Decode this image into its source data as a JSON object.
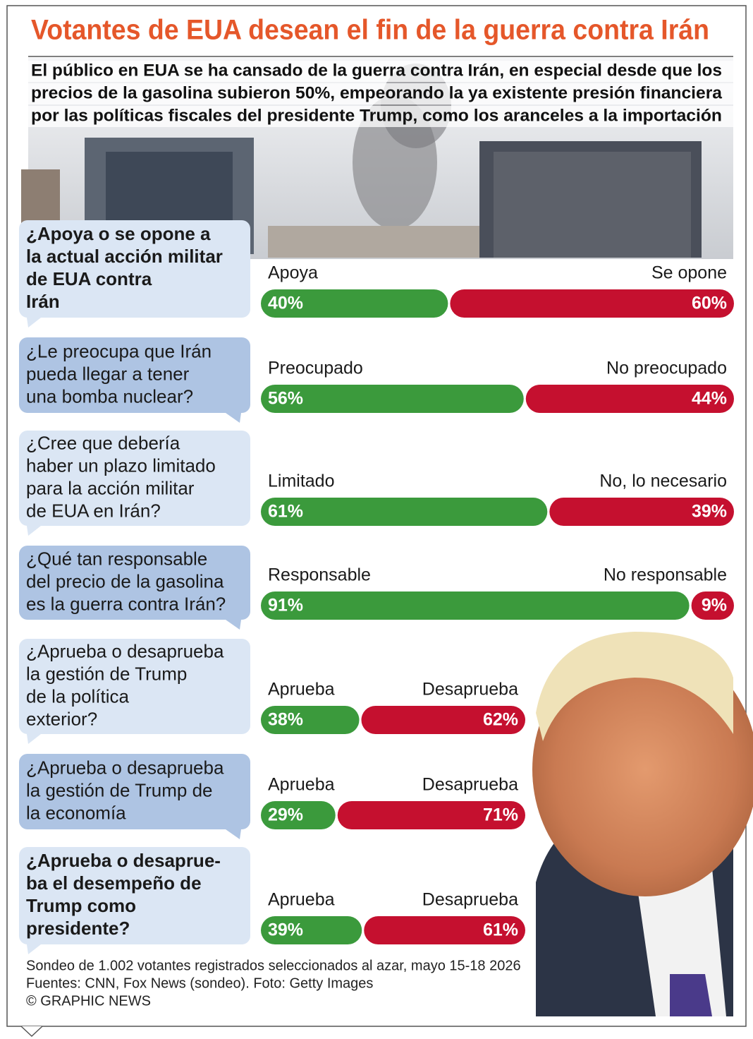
{
  "chart_data": {
    "type": "bar",
    "title": "Votantes de EUA desean el fin de la guerra contra Irán",
    "subtitle": [
      "El público en EUA se ha cansado de la guerra contra Irán, en especial desde que los",
      "precios de la gasolina subieron 50%, empeorando la ya existente presión financiera",
      "por las políticas fiscales del presidente Trump, como los aranceles a la importación"
    ],
    "colors": [
      "#3b9a3c",
      "#c5102f"
    ],
    "questions": [
      {
        "question": [
          "¿Apoya o se opone a",
          "la actual acción militar",
          "de EUA contra",
          "Irán"
        ],
        "bold": true,
        "labels": [
          "Apoya",
          "Se opone"
        ],
        "values": [
          40,
          60
        ],
        "value_labels": [
          "40%",
          "60%"
        ]
      },
      {
        "question": [
          "¿Le preocupa que Irán",
          "pueda llegar a tener",
          "una bomba nuclear?"
        ],
        "labels": [
          "Preocupado",
          "No preocupado"
        ],
        "values": [
          56,
          44
        ],
        "value_labels": [
          "56%",
          "44%"
        ]
      },
      {
        "question": [
          "¿Cree que debería",
          "haber un plazo limitado",
          "para la acción militar",
          "de EUA en Irán?"
        ],
        "labels": [
          "Limitado",
          "No, lo necesario"
        ],
        "values": [
          61,
          39
        ],
        "value_labels": [
          "61%",
          "39%"
        ]
      },
      {
        "question": [
          "¿Qué tan responsable",
          "del precio de la gasolina",
          "es la guerra contra Irán?"
        ],
        "labels": [
          "Responsable",
          "No responsable"
        ],
        "values": [
          91,
          9
        ],
        "value_labels": [
          "91%",
          "9%"
        ]
      },
      {
        "question": [
          "¿Aprueba o desaprueba",
          "la gestión de Trump",
          "de la política",
          "exterior?"
        ],
        "labels": [
          "Aprueba",
          "Desaprueba"
        ],
        "values": [
          38,
          62
        ],
        "value_labels": [
          "38%",
          "62%"
        ]
      },
      {
        "question": [
          "¿Aprueba o desaprueba",
          "la gestión de Trump de",
          "la economía"
        ],
        "labels": [
          "Aprueba",
          "Desaprueba"
        ],
        "values": [
          29,
          71
        ],
        "value_labels": [
          "29%",
          "71%"
        ]
      },
      {
        "question": [
          "¿Aprueba o desaprue-",
          "ba el desempeño de",
          "Trump como",
          "presidente?"
        ],
        "bold": true,
        "labels": [
          "Aprueba",
          "Desaprueba"
        ],
        "values": [
          39,
          61
        ],
        "value_labels": [
          "39%",
          "61%"
        ]
      }
    ],
    "notes": [
      "Sondeo de 1.002 votantes registrados seleccionados al azar, mayo 15-18 2026",
      "Fuentes: CNN, Fox News (sondeo). Foto: Getty Images",
      "© GRAPHIC NEWS"
    ]
  }
}
